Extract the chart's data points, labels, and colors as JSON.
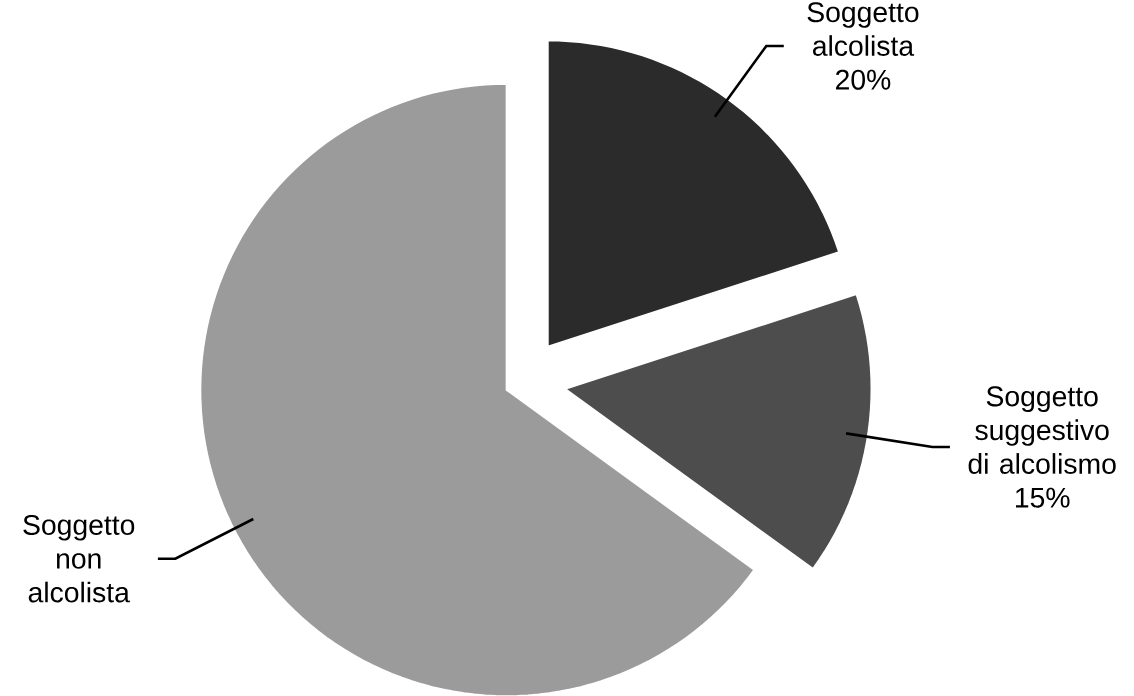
{
  "chart_data": {
    "type": "pie",
    "categories": [
      "Soggetto alcolista",
      "Soggetto suggestivo di alcolismo",
      "Soggetto non alcolista"
    ],
    "values": [
      20,
      15,
      65
    ],
    "colors": [
      "#2b2b2b",
      "#4d4d4d",
      "#9b9b9b"
    ],
    "value_labels": [
      "20%",
      "15%",
      null
    ]
  }
}
